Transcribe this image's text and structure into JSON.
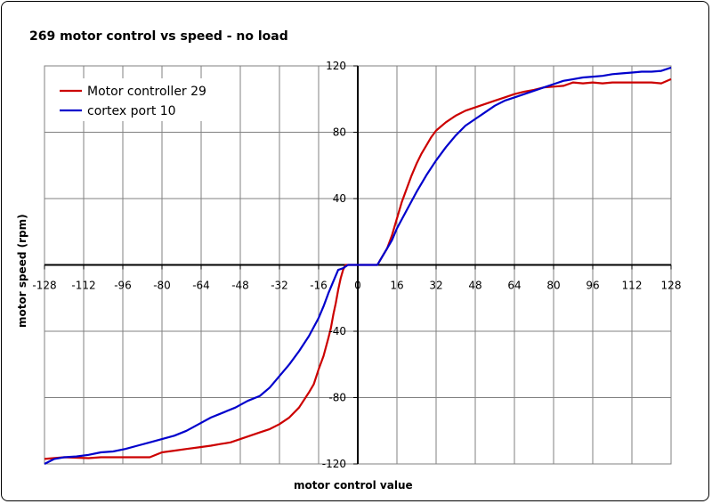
{
  "chart_data": {
    "type": "line",
    "title": "269 motor control vs speed - no load",
    "xlabel": "motor control value",
    "ylabel": "motor speed (rpm)",
    "xlim": [
      -128,
      128
    ],
    "ylim": [
      -120,
      120
    ],
    "x_ticks": [
      -128,
      -112,
      -96,
      -80,
      -64,
      -48,
      -32,
      -16,
      0,
      16,
      32,
      48,
      64,
      80,
      96,
      112,
      128
    ],
    "y_ticks": [
      -120,
      -80,
      -40,
      40,
      80,
      120
    ],
    "grid": true,
    "legend_position": "top-left",
    "series": [
      {
        "name": "Motor controller 29",
        "color": "#cc0000",
        "x": [
          -128,
          -120,
          -110,
          -105,
          -100,
          -90,
          -88,
          -85,
          -80,
          -75,
          -70,
          -65,
          -60,
          -56,
          -52,
          -48,
          -44,
          -40,
          -36,
          -32,
          -28,
          -24,
          -20,
          -18,
          -16,
          -14,
          -12,
          -11,
          -10,
          -9,
          -8,
          -7,
          -6,
          -5,
          -4,
          -3,
          0,
          6,
          8,
          10,
          12,
          14,
          16,
          18,
          20,
          22,
          24,
          26,
          28,
          30,
          32,
          36,
          40,
          44,
          48,
          52,
          56,
          60,
          64,
          68,
          72,
          76,
          80,
          84,
          86,
          88,
          92,
          96,
          100,
          104,
          108,
          112,
          116,
          120,
          124,
          128
        ],
        "y": [
          -117,
          -116,
          -116.5,
          -116,
          -116,
          -116,
          -116,
          -116,
          -113,
          -112,
          -111,
          -110,
          -109,
          -108,
          -107,
          -105,
          -103,
          -101,
          -99,
          -96,
          -92,
          -86,
          -77,
          -72,
          -63,
          -55,
          -44,
          -38,
          -30,
          -23,
          -15,
          -8,
          -3,
          0,
          0,
          0,
          0,
          0,
          0,
          5,
          10,
          18,
          28,
          38,
          46,
          54,
          61,
          67,
          72,
          77,
          81,
          86,
          90,
          93,
          95,
          97,
          99,
          101,
          103,
          104.5,
          105.5,
          107,
          107.5,
          108,
          109,
          110,
          109.5,
          110,
          109.5,
          110,
          110,
          110,
          110,
          110,
          109.5,
          112
        ]
      },
      {
        "name": "cortex port 10",
        "color": "#0000cc",
        "x": [
          -128,
          -124,
          -120,
          -115,
          -110,
          -105,
          -100,
          -95,
          -90,
          -85,
          -80,
          -75,
          -70,
          -65,
          -60,
          -55,
          -50,
          -45,
          -40,
          -36,
          -32,
          -28,
          -24,
          -20,
          -16,
          -14,
          -12,
          -10,
          -8,
          -6,
          -4,
          -3,
          0,
          5,
          8,
          10,
          12,
          14,
          16,
          20,
          24,
          28,
          32,
          36,
          40,
          44,
          48,
          52,
          56,
          60,
          64,
          68,
          72,
          76,
          80,
          84,
          88,
          92,
          96,
          100,
          104,
          108,
          112,
          116,
          120,
          124,
          128
        ],
        "y": [
          -120,
          -117,
          -116,
          -115.5,
          -114.5,
          -113,
          -112.5,
          -111,
          -109,
          -107,
          -105,
          -103,
          -100,
          -96,
          -92,
          -89,
          -86,
          -82,
          -79,
          -74,
          -67,
          -60,
          -52,
          -43,
          -32,
          -25,
          -17,
          -10,
          -3,
          -2,
          0,
          0,
          0,
          0,
          0,
          5,
          10,
          15,
          22,
          33,
          44,
          54,
          63,
          71,
          78,
          84,
          88,
          92,
          96,
          99,
          101,
          103,
          105,
          107,
          109,
          111,
          112,
          113,
          113.5,
          114,
          115,
          115.5,
          116,
          116.5,
          116.5,
          117,
          119
        ]
      }
    ]
  }
}
